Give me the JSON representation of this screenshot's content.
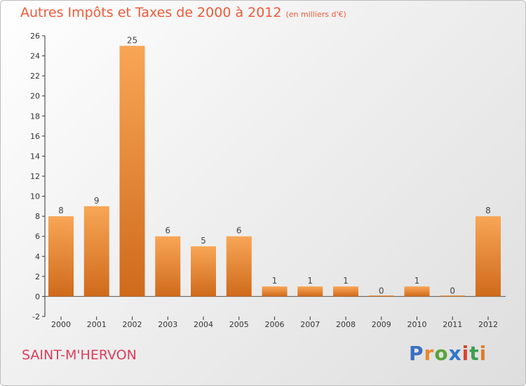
{
  "title": "Autres Impôts et Taxes de 2000 à 2012",
  "subtitle": "(en milliers d'€)",
  "commune": "SAINT-M'HERVON",
  "brand": {
    "text": "Proxiti",
    "letters": [
      "P",
      "r",
      "o",
      "x",
      "i",
      "t",
      "i"
    ],
    "colors": [
      "#3a6fc4",
      "#e8892a",
      "#5aa33c",
      "#2f78c8",
      "#d9452e",
      "#3e9e52",
      "#e07b2d"
    ]
  },
  "colors": {
    "title": "#ee5a3a",
    "commune": "#dd3b5b",
    "bar_light": "#f8a656",
    "bar_dark": "#cf6a1b"
  },
  "chart_data": {
    "type": "bar",
    "title": "Autres Impôts et Taxes de 2000 à 2012",
    "subtitle": "(en milliers d'€)",
    "categories": [
      "2000",
      "2001",
      "2002",
      "2003",
      "2004",
      "2005",
      "2006",
      "2007",
      "2008",
      "2009",
      "2010",
      "2011",
      "2012"
    ],
    "values": [
      8,
      9,
      25,
      6,
      5,
      6,
      1,
      1,
      1,
      0,
      1,
      0,
      8
    ],
    "ylim": [
      -2,
      26
    ],
    "yticks": [
      -2,
      0,
      2,
      4,
      6,
      8,
      10,
      12,
      14,
      16,
      18,
      20,
      22,
      24,
      26
    ],
    "grid": false,
    "legend": "none"
  }
}
